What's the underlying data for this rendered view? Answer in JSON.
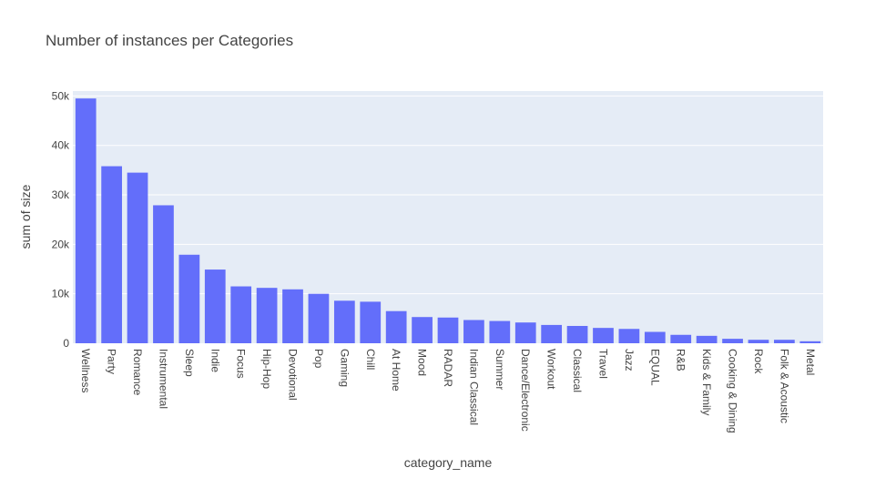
{
  "chart_data": {
    "type": "bar",
    "title": "Number of instances per Categories",
    "xlabel": "category_name",
    "ylabel": "sum of size",
    "categories": [
      "Wellness",
      "Party",
      "Romance",
      "Instrumental",
      "Sleep",
      "Indie",
      "Focus",
      "Hip-Hop",
      "Devotional",
      "Pop",
      "Gaming",
      "Chill",
      "At Home",
      "Mood",
      "RADAR",
      "Indian Classical",
      "Summer",
      "Dance/Electronic",
      "Workout",
      "Classical",
      "Travel",
      "Jazz",
      "EQUAL",
      "R&B",
      "Kids & Family",
      "Cooking & Dining",
      "Rock",
      "Folk & Acoustic",
      "Metal"
    ],
    "values": [
      49500,
      35800,
      34500,
      27900,
      17900,
      14900,
      11500,
      11200,
      10900,
      10000,
      8600,
      8400,
      6500,
      5300,
      5200,
      4700,
      4500,
      4200,
      3700,
      3500,
      3100,
      2900,
      2300,
      1700,
      1500,
      900,
      700,
      700,
      400
    ],
    "ylim": [
      0,
      51000
    ],
    "yticks": [
      0,
      10000,
      20000,
      30000,
      40000,
      50000
    ],
    "ytick_labels": [
      "0",
      "10k",
      "20k",
      "30k",
      "40k",
      "50k"
    ],
    "bar_color": "#636efa",
    "plot_bg": "#e5ecf6",
    "grid": true,
    "legend": "none"
  }
}
